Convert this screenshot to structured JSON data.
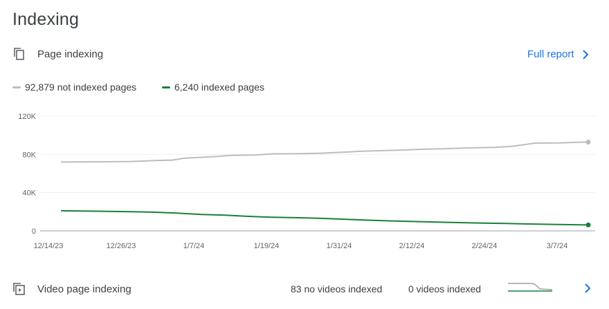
{
  "header": {
    "title": "Indexing"
  },
  "page_indexing": {
    "icon": "pages-icon",
    "label": "Page indexing",
    "full_report": "Full report",
    "legend": [
      {
        "label": "92,879 not indexed pages",
        "color": "#bdbdbd"
      },
      {
        "label": "6,240 indexed pages",
        "color": "#188038"
      }
    ]
  },
  "chart_data": {
    "type": "line",
    "x_tick_labels": [
      "12/14/23",
      "12/26/23",
      "1/7/24",
      "1/19/24",
      "1/31/24",
      "2/12/24",
      "2/24/24",
      "3/7/24"
    ],
    "y_tick_labels": [
      "0",
      "40K",
      "80K",
      "120K"
    ],
    "ylim": [
      0,
      120000
    ],
    "x_start": "2023-12-14",
    "x_end": "2024-03-13",
    "grid": true,
    "series": [
      {
        "name": "not indexed pages",
        "color": "#bdbdbd",
        "points": [
          [
            "2023-12-14",
            72000
          ],
          [
            "2023-12-20",
            72200
          ],
          [
            "2023-12-26",
            72600
          ],
          [
            "2023-12-30",
            73500
          ],
          [
            "2024-01-02",
            74000
          ],
          [
            "2024-01-04",
            76000
          ],
          [
            "2024-01-07",
            77000
          ],
          [
            "2024-01-10",
            78000
          ],
          [
            "2024-01-12",
            79000
          ],
          [
            "2024-01-16",
            79300
          ],
          [
            "2024-01-19",
            80500
          ],
          [
            "2024-01-23",
            80700
          ],
          [
            "2024-01-27",
            81200
          ],
          [
            "2024-01-31",
            82300
          ],
          [
            "2024-02-03",
            83200
          ],
          [
            "2024-02-06",
            83800
          ],
          [
            "2024-02-10",
            84500
          ],
          [
            "2024-02-14",
            85400
          ],
          [
            "2024-02-18",
            86000
          ],
          [
            "2024-02-22",
            86800
          ],
          [
            "2024-02-26",
            87300
          ],
          [
            "2024-02-29",
            88500
          ],
          [
            "2024-03-04",
            91800
          ],
          [
            "2024-03-08",
            92000
          ],
          [
            "2024-03-11",
            92600
          ],
          [
            "2024-03-13",
            92879
          ]
        ]
      },
      {
        "name": "indexed pages",
        "color": "#188038",
        "points": [
          [
            "2023-12-14",
            21000
          ],
          [
            "2023-12-20",
            20600
          ],
          [
            "2023-12-26",
            20000
          ],
          [
            "2023-12-30",
            19500
          ],
          [
            "2024-01-03",
            18500
          ],
          [
            "2024-01-07",
            17200
          ],
          [
            "2024-01-11",
            16500
          ],
          [
            "2024-01-15",
            15200
          ],
          [
            "2024-01-19",
            14300
          ],
          [
            "2024-01-23",
            13800
          ],
          [
            "2024-01-27",
            13200
          ],
          [
            "2024-01-31",
            12300
          ],
          [
            "2024-02-04",
            11300
          ],
          [
            "2024-02-08",
            10500
          ],
          [
            "2024-02-12",
            9800
          ],
          [
            "2024-02-16",
            9200
          ],
          [
            "2024-02-20",
            8700
          ],
          [
            "2024-02-24",
            8200
          ],
          [
            "2024-02-28",
            7700
          ],
          [
            "2024-03-03",
            7200
          ],
          [
            "2024-03-07",
            6800
          ],
          [
            "2024-03-10",
            6500
          ],
          [
            "2024-03-13",
            6240
          ]
        ]
      }
    ]
  },
  "video_indexing": {
    "icon": "video-page-icon",
    "label": "Video page indexing",
    "no_videos": "83 no videos indexed",
    "videos_indexed": "0 videos indexed"
  }
}
